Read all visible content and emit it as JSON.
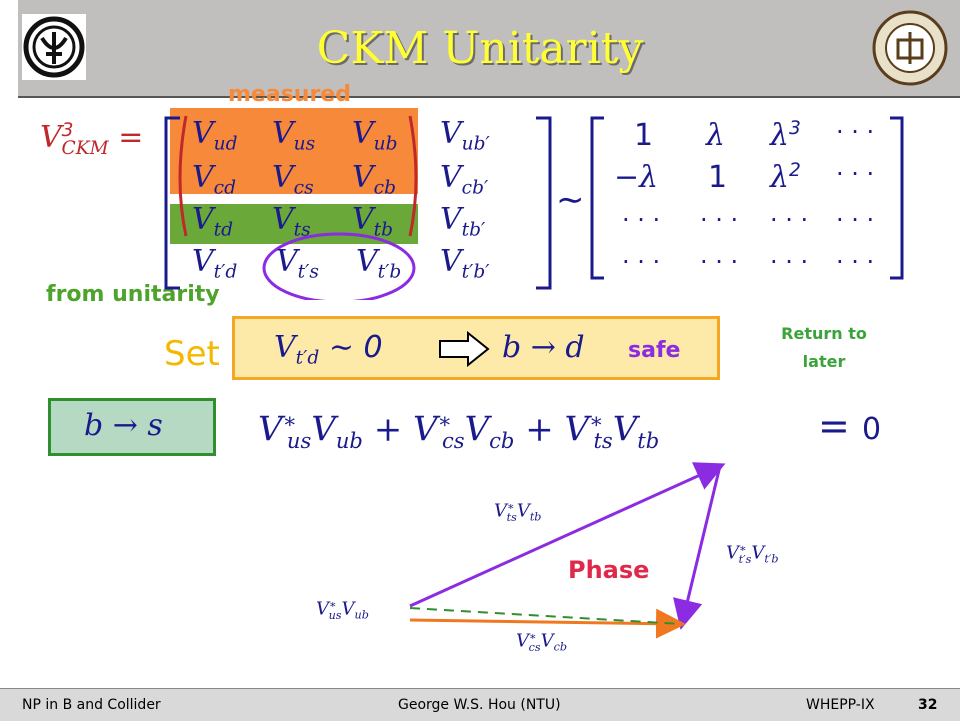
{
  "slide": {
    "title": "CKM Unitarity",
    "label_measured": "measured",
    "label_unitarity": "from unitarity",
    "set_word": "Set",
    "safe_word": "safe",
    "return_note_line1": "Return to",
    "return_note_line2": "later",
    "phase_label": "Phase",
    "zero": "0",
    "matrix_rhs_zero_1": "1",
    "matrix_rhs_one": "1",
    "dots": "· · ·"
  },
  "footer": {
    "left": "NP in B and Collider",
    "center": "George W.S. Hou (NTU)",
    "right": "WHEPP-IX",
    "page": "32"
  },
  "colors": {
    "orange_band": "#f7893a",
    "green_band": "#6aa83a",
    "purple": "#8b2be2",
    "orange_arrow": "#f07820",
    "set_box_bg": "#fde9a8",
    "set_box_border": "#f5a623",
    "bs_box_bg": "#b5d9c3",
    "bs_box_border": "#2f8f2f",
    "title_yellow": "#ffff33"
  },
  "icons": {
    "left_logo": "university-emblem-left-icon",
    "right_logo": "university-seal-right-icon",
    "implies_arrow": "hollow-right-arrow-icon"
  }
}
